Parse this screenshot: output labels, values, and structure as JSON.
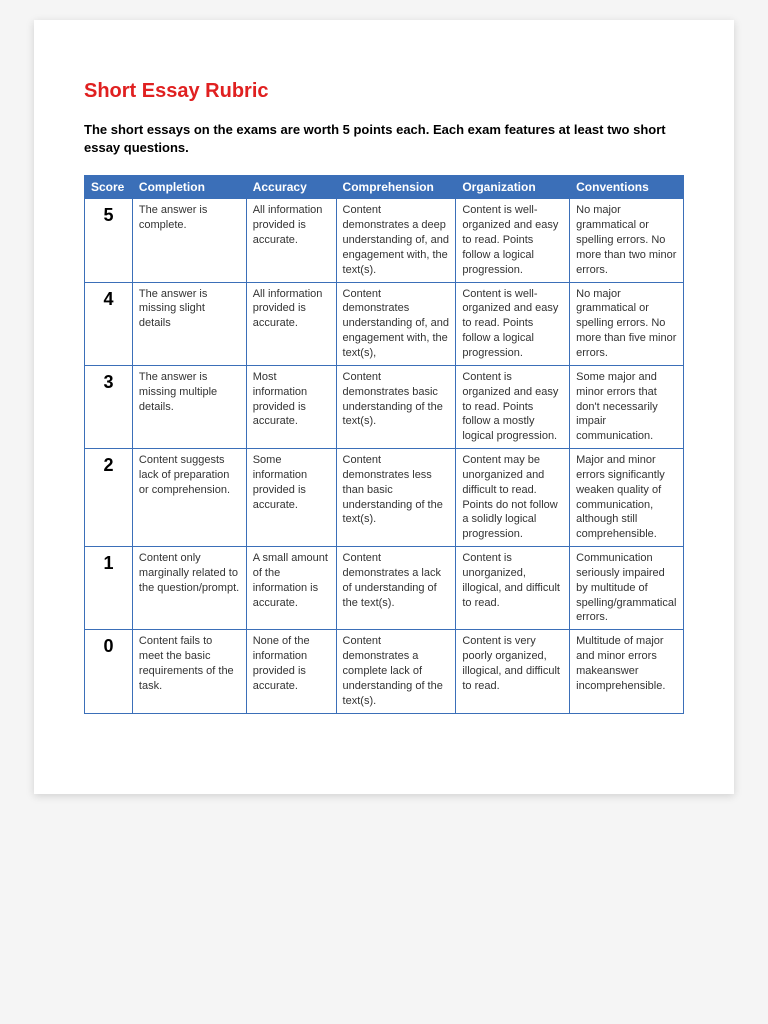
{
  "title": "Short Essay Rubric",
  "intro": "The short essays on the exams are worth 5 points each. Each exam features at least two short essay questions.",
  "colors": {
    "title": "#e02020",
    "header_bg": "#3b6fb8",
    "header_text": "#ffffff",
    "border": "#3b6fb8",
    "body_text": "#333333",
    "page_bg": "#ffffff"
  },
  "table": {
    "columns": [
      "Score",
      "Completion",
      "Accuracy",
      "Comprehension",
      "Organization",
      "Conventions"
    ],
    "col_widths_pct": [
      8,
      19,
      15,
      20,
      19,
      19
    ],
    "header_fontsize": 12,
    "cell_fontsize": 11,
    "score_fontsize": 18,
    "rows": [
      {
        "score": "5",
        "completion": "The answer is complete.",
        "accuracy": "All information provided is accurate.",
        "comprehension": "Content demonstrates a deep understanding of, and engagement with, the text(s).",
        "organization": "Content is well-organized and easy to read. Points follow a logical progression.",
        "conventions": "No major grammatical or spelling errors. No more than two minor errors."
      },
      {
        "score": "4",
        "completion": "The answer is missing slight details",
        "accuracy": "All information provided is accurate.",
        "comprehension": "Content demonstrates understanding of, and engagement with, the text(s),",
        "organization": "Content is well-organized and easy to read. Points follow a logical progression.",
        "conventions": "No major grammatical or spelling errors. No more than five minor errors."
      },
      {
        "score": "3",
        "completion": "The answer is missing multiple details.",
        "accuracy": "Most information provided is accurate.",
        "comprehension": "Content demonstrates basic understanding of the text(s).",
        "organization": "Content is organized and easy to read. Points follow a mostly logical progression.",
        "conventions": "Some major and minor errors that don't necessarily impair communication."
      },
      {
        "score": "2",
        "completion": "Content suggests lack of preparation or comprehension.",
        "accuracy": "Some information provided is accurate.",
        "comprehension": "Content demonstrates less than basic understanding of the text(s).",
        "organization": "Content may be unorganized and difficult to read. Points do not follow a solidly logical progression.",
        "conventions": "Major and minor errors significantly weaken quality of communication, although still comprehensible."
      },
      {
        "score": "1",
        "completion": "Content only marginally related to the question/prompt.",
        "accuracy": "A small amount of the information is accurate.",
        "comprehension": "Content demonstrates a lack of understanding of the text(s).",
        "organization": "Content is unorganized, illogical, and difficult to read.",
        "conventions": "Communication seriously impaired by multitude of spelling/grammatical errors."
      },
      {
        "score": "0",
        "completion": "Content fails to meet the basic requirements of the task.",
        "accuracy": "None of the information provided is accurate.",
        "comprehension": "Content demonstrates a complete lack of understanding of the text(s).",
        "organization": "Content is very poorly organized, illogical, and difficult to read.",
        "conventions": "Multitude of major and minor errors makeanswer incomprehensible."
      }
    ]
  }
}
